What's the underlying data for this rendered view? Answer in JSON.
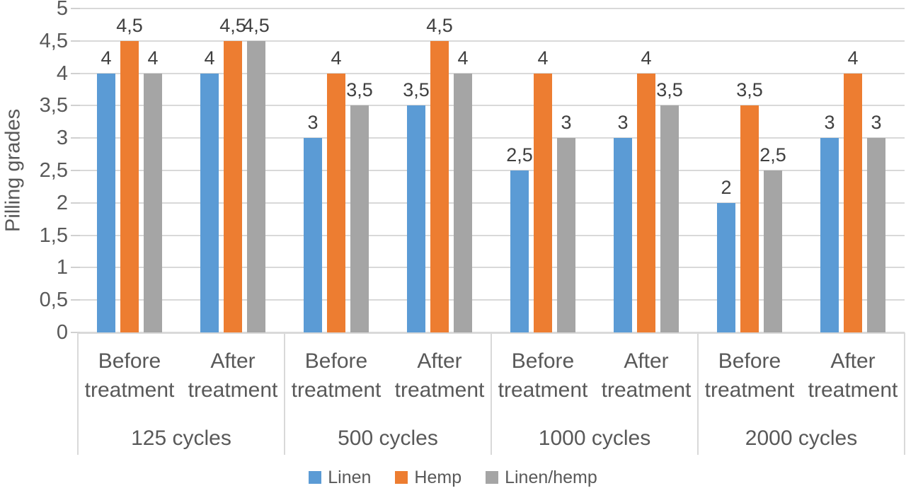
{
  "chart_data": {
    "type": "bar",
    "title": "",
    "ylabel": "Pilling grades",
    "xlabel": "",
    "ylim": [
      0,
      5
    ],
    "ytick_step": 0.5,
    "ytick_labels": [
      "0",
      "0,5",
      "1",
      "1,5",
      "2",
      "2,5",
      "3",
      "3,5",
      "4",
      "4,5",
      "5"
    ],
    "decimal_separator": ",",
    "grid": true,
    "data_labels": true,
    "legend_position": "bottom",
    "groups": [
      "125 cycles",
      "500 cycles",
      "1000 cycles",
      "2000 cycles"
    ],
    "subgroups_per_group": [
      "Before treatment",
      "After treatment"
    ],
    "categories": [
      "Before treatment 125 cycles",
      "After treatment 125 cycles",
      "Before treatment 500 cycles",
      "After treatment 500 cycles",
      "Before treatment 1000 cycles",
      "After treatment 1000 cycles",
      "Before treatment 2000 cycles",
      "After treatment 2000 cycles"
    ],
    "series": [
      {
        "name": "Linen",
        "color": "#5B9BD5",
        "values": [
          4,
          4,
          3,
          3.5,
          2.5,
          3,
          2,
          3
        ]
      },
      {
        "name": "Hemp",
        "color": "#ED7D31",
        "values": [
          4.5,
          4.5,
          4,
          4.5,
          4,
          4,
          3.5,
          4
        ]
      },
      {
        "name": "Linen/hemp",
        "color": "#A5A5A5",
        "values": [
          4,
          4.5,
          3.5,
          4,
          3,
          3.5,
          2.5,
          3
        ]
      }
    ],
    "colors": {
      "gridline": "#D9D9D9",
      "axis_text": "#595959",
      "data_label_text": "#404040"
    }
  }
}
